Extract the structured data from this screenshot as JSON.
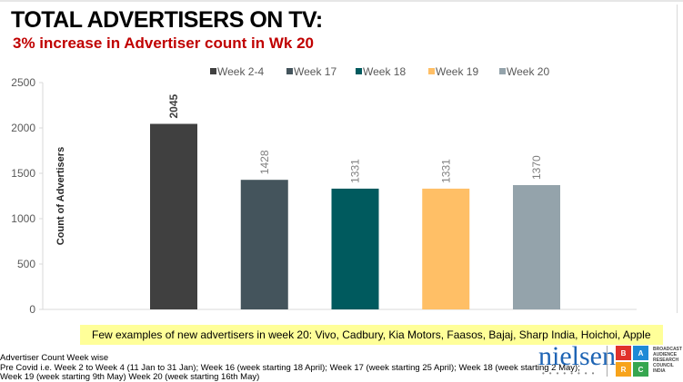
{
  "header": {
    "title": "TOTAL ADVERTISERS ON TV:",
    "subtitle": "3% increase in Advertiser count in Wk 20"
  },
  "chart_data": {
    "type": "bar",
    "categories": [
      "Week 2-4",
      "Week 17",
      "Week 18",
      "Week 19",
      "Week 20"
    ],
    "values": [
      2045,
      1428,
      1331,
      1331,
      1370
    ],
    "colors": [
      "#404040",
      "#44545c",
      "#005a5e",
      "#ffbf66",
      "#94a3ab"
    ],
    "ylabel": "Count of Advertisers",
    "ylim": [
      0,
      2500
    ],
    "yticks": [
      0,
      500,
      1000,
      1500,
      2000,
      2500
    ],
    "legend_position": "top",
    "data_labels": [
      "2045",
      "1428",
      "1331",
      "1331",
      "1370"
    ],
    "grid": false
  },
  "note": "Few examples of new advertisers in week 20: Vivo, Cadbury, Kia Motors, Faasos, Bajaj, Sharp India, Hoichoi, Apple",
  "footer": {
    "line1": "Advertiser Count Week wise",
    "line2": "Pre Covid i.e. Week 2 to Week 4 (11 Jan to 31 Jan); Week 16 (week starting 18 April); Week 17 (week starting 25 April); Week 18 (week starting 2 May);",
    "line3": "Week 19 (week starting 9th May) Week 20 (week starting 16th May)"
  },
  "logos": {
    "nielsen": "nielsen",
    "barc": [
      "B",
      "A",
      "R",
      "C"
    ],
    "barc_text": "BROADCAST AUDIENCE RESEARCH COUNCIL INDIA"
  }
}
